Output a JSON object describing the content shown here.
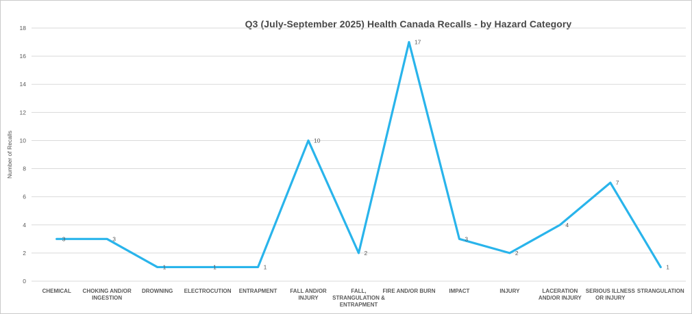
{
  "window": {
    "background_color": "#ffffff",
    "border_color": "#c9c9c9"
  },
  "chart_data": {
    "type": "line",
    "title": "Q3 (July-September 2025) Health Canada Recalls - by Hazard Category",
    "xlabel": "",
    "ylabel": "Number of Recalls",
    "ylim": [
      0,
      18
    ],
    "yticks": [
      0,
      2,
      4,
      6,
      8,
      10,
      12,
      14,
      16,
      18
    ],
    "grid": true,
    "legend_position": "none",
    "categories": [
      "CHEMICAL",
      "CHOKING AND/OR INGESTION",
      "DROWNING",
      "ELECTROCUTION",
      "ENTRAPMENT",
      "FALL AND/OR INJURY",
      "FALL, STRANGULATION & ENTRAPMENT",
      "FIRE AND/OR BURN",
      "IMPACT",
      "INJURY",
      "LACERATION AND/OR INJURY",
      "SERIOUS ILLNESS OR INJURY",
      "STRANGULATION"
    ],
    "categories_wrapped": [
      [
        "CHEMICAL"
      ],
      [
        "CHOKING AND/OR",
        "INGESTION"
      ],
      [
        "DROWNING"
      ],
      [
        "ELECTROCUTION"
      ],
      [
        "ENTRAPMENT"
      ],
      [
        "FALL AND/OR",
        "INJURY"
      ],
      [
        "FALL,",
        "STRANGULATION &",
        "ENTRAPMENT"
      ],
      [
        "FIRE AND/OR BURN"
      ],
      [
        "IMPACT"
      ],
      [
        "INJURY"
      ],
      [
        "LACERATION",
        "AND/OR INJURY"
      ],
      [
        "SERIOUS ILLNESS",
        "OR INJURY"
      ],
      [
        "STRANGULATION"
      ]
    ],
    "values": [
      3,
      3,
      1,
      1,
      1,
      10,
      2,
      17,
      3,
      2,
      4,
      7,
      1
    ],
    "data_labels": [
      "3",
      "3",
      "1",
      "1",
      "1",
      "10",
      "2",
      "17",
      "3",
      "2",
      "4",
      "7",
      "1"
    ],
    "colors": {
      "line": "#29b4eb",
      "gridline": "#d9d9d9",
      "tick_label": "#595959",
      "category_label": "#595959",
      "data_label": "#595959",
      "axis_title": "#4d4d4d",
      "title": "#474747"
    }
  }
}
